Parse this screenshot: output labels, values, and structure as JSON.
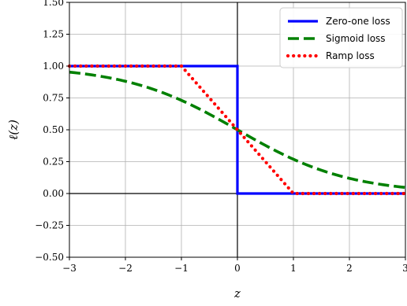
{
  "chart_data": {
    "type": "line",
    "title": "",
    "xlabel": "z",
    "ylabel": "ℓ(z)",
    "xlim": [
      -3,
      3
    ],
    "ylim": [
      -0.5,
      1.5
    ],
    "grid": true,
    "zero_lines": true,
    "x_ticks": [
      -3,
      -2,
      -1,
      0,
      1,
      2,
      3
    ],
    "y_ticks": [
      -0.5,
      -0.25,
      0.0,
      0.25,
      0.5,
      0.75,
      1.0,
      1.25,
      1.5
    ],
    "x_tick_labels": [
      "−3",
      "−2",
      "−1",
      "0",
      "1",
      "2",
      "3"
    ],
    "y_tick_labels": [
      "−0.50",
      "−0.25",
      "0.00",
      "0.25",
      "0.50",
      "0.75",
      "1.00",
      "1.25",
      "1.50"
    ],
    "legend_position": "top-right",
    "series": [
      {
        "name": "Zero-one loss",
        "color": "#0000ff",
        "style": "solid",
        "x": [
          -3,
          0,
          0,
          3
        ],
        "y": [
          1,
          1,
          0,
          0
        ]
      },
      {
        "name": "Sigmoid loss",
        "color": "#008000",
        "style": "dashed",
        "x": [
          -3,
          -2.5,
          -2,
          -1.5,
          -1,
          -0.5,
          0,
          0.5,
          1,
          1.5,
          2,
          2.5,
          3
        ],
        "y": [
          0.953,
          0.924,
          0.881,
          0.818,
          0.731,
          0.622,
          0.5,
          0.378,
          0.269,
          0.182,
          0.119,
          0.076,
          0.047
        ]
      },
      {
        "name": "Ramp loss",
        "color": "#ff0000",
        "style": "dotted",
        "x": [
          -3,
          -1,
          1,
          3
        ],
        "y": [
          1,
          1,
          0,
          0
        ]
      }
    ]
  }
}
